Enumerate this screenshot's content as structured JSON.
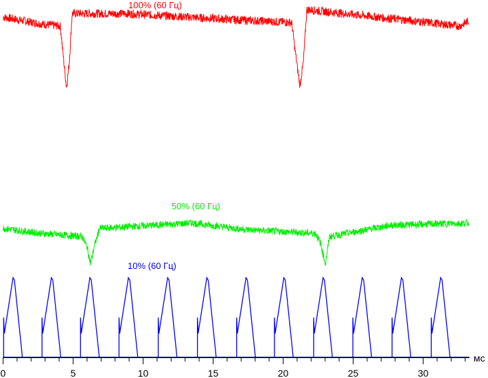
{
  "chart_data": {
    "type": "line",
    "xlabel": "мс",
    "xlim": [
      0,
      33.3
    ],
    "x_ticks": [
      0,
      5,
      10,
      15,
      20,
      25,
      30
    ],
    "x_minor_step": 1,
    "grid": false,
    "series": [
      {
        "name": "100% (60 Гц)",
        "color": "#ff0000",
        "noise": 1.2,
        "points": [
          [
            0,
            95.2
          ],
          [
            2.72,
            93.3
          ],
          [
            4.09,
            92.7
          ],
          [
            4.34,
            82.7
          ],
          [
            4.53,
            75.4
          ],
          [
            4.73,
            82.7
          ],
          [
            4.93,
            96.2
          ],
          [
            8.85,
            96.2
          ],
          [
            15.96,
            94.6
          ],
          [
            20.61,
            93.7
          ],
          [
            20.96,
            82.7
          ],
          [
            21.2,
            76.0
          ],
          [
            21.45,
            82.7
          ],
          [
            21.69,
            97.3
          ],
          [
            29.19,
            94.2
          ],
          [
            32.62,
            92.7
          ],
          [
            33.26,
            94.2
          ]
        ]
      },
      {
        "name": "50% (60 Гц)",
        "color": "#00ee00",
        "noise": 1.0,
        "points": [
          [
            0,
            36.1
          ],
          [
            2.72,
            34.7
          ],
          [
            5.66,
            33.8
          ],
          [
            6.0,
            30.9
          ],
          [
            6.25,
            26.1
          ],
          [
            6.5,
            30.9
          ],
          [
            6.89,
            36.1
          ],
          [
            13.5,
            37.6
          ],
          [
            17.43,
            35.7
          ],
          [
            22.33,
            34.7
          ],
          [
            22.67,
            31.9
          ],
          [
            23.02,
            26.1
          ],
          [
            23.31,
            33.8
          ],
          [
            27.7,
            37.0
          ],
          [
            33.26,
            37.6
          ]
        ]
      },
      {
        "name": "10% (60 Гц)",
        "color": "#0000ff",
        "baseline": 0,
        "pulse_peak": 22.3,
        "pulse_peaks_ms": [
          0.76,
          3.5,
          6.25,
          9.0,
          11.8,
          14.6,
          17.4,
          20.1,
          22.9,
          25.7,
          28.5,
          31.3
        ]
      }
    ]
  }
}
